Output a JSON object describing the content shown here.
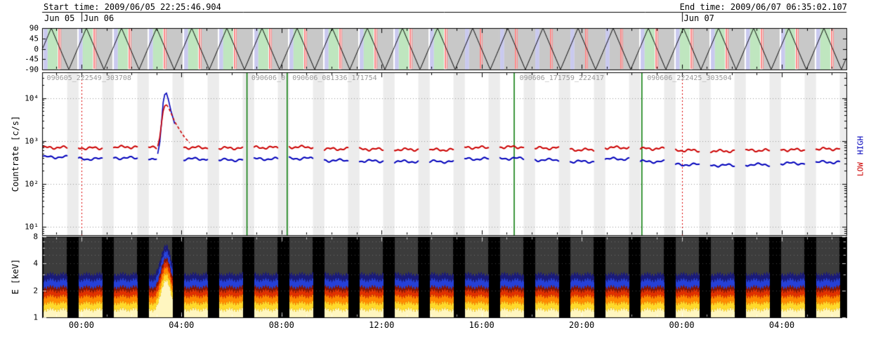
{
  "header": {
    "start": "Start time: 2009/06/05 22:25:46.904",
    "end": "End time: 2009/06/07 06:35:02.107"
  },
  "date_labels": [
    {
      "label": "Jun 05",
      "t_h": 0.0
    },
    {
      "label": "Jun 06",
      "t_h": 1.5703
    },
    {
      "label": "Jun 07",
      "t_h": 25.5703
    }
  ],
  "right_labels": {
    "high": "HIGH",
    "low": "LOW"
  },
  "time_axis": {
    "duration_h": 32.154,
    "minor_phase_h": 0.5703,
    "minor_step_h": 1,
    "day_tick_t_h": [
      1.5703,
      25.5703
    ],
    "major_ticks": [
      {
        "t_h": 1.5703,
        "label": "00:00"
      },
      {
        "t_h": 5.5703,
        "label": "04:00"
      },
      {
        "t_h": 9.5703,
        "label": "08:00"
      },
      {
        "t_h": 13.5703,
        "label": "12:00"
      },
      {
        "t_h": 17.5703,
        "label": "16:00"
      },
      {
        "t_h": 21.5703,
        "label": "20:00"
      },
      {
        "t_h": 25.5703,
        "label": "00:00"
      },
      {
        "t_h": 29.5703,
        "label": "04:00"
      }
    ]
  },
  "chart_data": [
    {
      "type": "line",
      "name": "aspect-angle-panel",
      "title": "",
      "ylabel": "",
      "ylim": [
        -90,
        90
      ],
      "yticks": [
        {
          "v": 90,
          "label": "90"
        },
        {
          "v": 45,
          "label": "45"
        },
        {
          "v": 0,
          "label": "0"
        },
        {
          "v": -45,
          "label": "-45"
        },
        {
          "v": -90,
          "label": "-90"
        }
      ],
      "waveform": {
        "shape": "triangle",
        "period_h": 1.404,
        "peak_t_h": 0.365,
        "min": -90,
        "max": 90,
        "color": "#000000"
      },
      "bands": {
        "period_h": 1.404,
        "pattern": [
          {
            "o0": 0.0,
            "o1": 0.06,
            "c": "#ffffff"
          },
          {
            "o0": 0.06,
            "o1": 0.22,
            "c": "#c9c9ef"
          },
          {
            "o0": 0.22,
            "o1": 0.62,
            "c": "#bfe6bf"
          },
          {
            "o0": 0.62,
            "o1": 0.72,
            "c": "#ffffff"
          },
          {
            "o0": 0.72,
            "o1": 1.404,
            "c": "#c8c8c8"
          }
        ],
        "green": "#bfe6bf",
        "gray": "#c8c8c8",
        "lavender": "#c9c9ef",
        "solid_gray_cycles": [
          12,
          13,
          14,
          15,
          16
        ],
        "red_stripe_offsets": [
          0.64,
          0.68,
          0.73
        ],
        "stripe_color": "#ff8a8a"
      }
    },
    {
      "type": "scatter",
      "name": "countrate-panel",
      "title": "",
      "ylabel": "Countrate [c/s]",
      "yscale": "log",
      "ylim": [
        10,
        40000
      ],
      "exp_range": [
        0.8,
        4.6
      ],
      "yticks": [
        {
          "v": 10,
          "label": "10¹"
        },
        {
          "v": 100,
          "label": "10²"
        },
        {
          "v": 1000,
          "label": "10³"
        },
        {
          "v": 10000,
          "label": "10⁴"
        }
      ],
      "series": [
        {
          "name": "LOW",
          "color": "#cc0000"
        },
        {
          "name": "HIGH",
          "color": "#0000bb"
        }
      ],
      "segments": [
        {
          "t0": 0.05,
          "t1": 1.0,
          "low": 700,
          "high": 420
        },
        {
          "t0": 1.454,
          "t1": 2.404,
          "low": 680,
          "high": 380
        },
        {
          "t0": 2.858,
          "t1": 3.808,
          "low": 720,
          "high": 400
        },
        {
          "t0": 4.262,
          "t1": 5.212,
          "low": 700,
          "high": 390
        },
        {
          "t0": 5.666,
          "t1": 6.616,
          "low": 700,
          "high": 380
        },
        {
          "t0": 7.07,
          "t1": 8.02,
          "low": 680,
          "high": 360
        },
        {
          "t0": 8.474,
          "t1": 9.424,
          "low": 700,
          "high": 380
        },
        {
          "t0": 9.878,
          "t1": 10.828,
          "low": 720,
          "high": 390
        },
        {
          "t0": 11.282,
          "t1": 12.232,
          "low": 650,
          "high": 350
        },
        {
          "t0": 12.686,
          "t1": 13.636,
          "low": 640,
          "high": 340
        },
        {
          "t0": 14.09,
          "t1": 15.04,
          "low": 630,
          "high": 330
        },
        {
          "t0": 15.494,
          "t1": 16.444,
          "low": 620,
          "high": 330
        },
        {
          "t0": 16.898,
          "t1": 17.848,
          "low": 700,
          "high": 380
        },
        {
          "t0": 18.302,
          "t1": 19.252,
          "low": 720,
          "high": 390
        },
        {
          "t0": 19.706,
          "t1": 20.656,
          "low": 680,
          "high": 360
        },
        {
          "t0": 21.11,
          "t1": 22.06,
          "low": 620,
          "high": 330
        },
        {
          "t0": 22.514,
          "t1": 23.464,
          "low": 700,
          "high": 380
        },
        {
          "t0": 23.918,
          "t1": 24.868,
          "low": 660,
          "high": 330
        },
        {
          "t0": 25.322,
          "t1": 26.272,
          "low": 600,
          "high": 280
        },
        {
          "t0": 26.726,
          "t1": 27.676,
          "low": 580,
          "high": 270
        },
        {
          "t0": 28.13,
          "t1": 29.08,
          "low": 600,
          "high": 280
        },
        {
          "t0": 29.534,
          "t1": 30.484,
          "low": 620,
          "high": 300
        },
        {
          "t0": 30.938,
          "t1": 31.888,
          "low": 650,
          "high": 320
        }
      ],
      "flare": {
        "t": [
          4.62,
          4.7,
          4.78,
          4.84,
          4.9,
          4.97,
          5.05,
          5.15,
          5.3,
          5.5,
          5.7,
          5.9
        ],
        "low": [
          750,
          1200,
          2800,
          5000,
          6500,
          7000,
          6000,
          4500,
          2800,
          1800,
          1200,
          900
        ],
        "high": [
          500,
          900,
          3000,
          8000,
          12000,
          13000,
          9000,
          5000,
          2500,
          1300,
          800,
          600
        ],
        "dashed_after_t": 5.0,
        "high_end_t": 5.3
      },
      "green_lines_t_h": [
        8.189,
        9.796,
        18.872,
        23.977
      ],
      "red_dotted_t_h": [
        1.5703,
        25.5703
      ],
      "file_labels": [
        {
          "label": "090605_222549_303708",
          "t_h": 0.1
        },
        {
          "label": "090606_0",
          "t_h": 8.28
        },
        {
          "label": "090606_081336_171754",
          "t_h": 9.92
        },
        {
          "label": "090606_171759_222417",
          "t_h": 19.0
        },
        {
          "label": "090606_222425_303504",
          "t_h": 24.1
        }
      ],
      "stripe_color": "#ececec",
      "grid_color": "#999999",
      "green_color": "#007700",
      "red_line_color": "#dd0000"
    },
    {
      "type": "heatmap",
      "name": "spectrogram-panel",
      "title": "",
      "ylabel": "E [keV]",
      "yscale": "log",
      "ylim": [
        1,
        8
      ],
      "yticks": [
        {
          "v": 8,
          "label": "8"
        },
        {
          "v": 4,
          "label": "4"
        },
        {
          "v": 2,
          "label": "2"
        },
        {
          "v": 1,
          "label": "1"
        }
      ],
      "minor_yticks": [
        3,
        5,
        6,
        7
      ],
      "bg": "#3c3c3c",
      "gap_color": "#000000",
      "palette": [
        {
          "e": 1.22,
          "c": "#fff6c0"
        },
        {
          "e": 1.45,
          "c": "#ffd92a"
        },
        {
          "e": 1.72,
          "c": "#ff8a00"
        },
        {
          "e": 1.98,
          "c": "#e03000"
        },
        {
          "e": 2.18,
          "c": "#8a1400"
        },
        {
          "e": 2.62,
          "c": "#2540d8"
        },
        {
          "e": 3.05,
          "c": "#1a1a78"
        }
      ],
      "flare_enhancement": {
        "t0": 4.5,
        "t1": 5.8,
        "center_t_h": 4.93,
        "sigma_h": 0.22,
        "amplitude": 1.15
      },
      "grid_energies": [
        2,
        3,
        4,
        5,
        6,
        7
      ]
    }
  ]
}
